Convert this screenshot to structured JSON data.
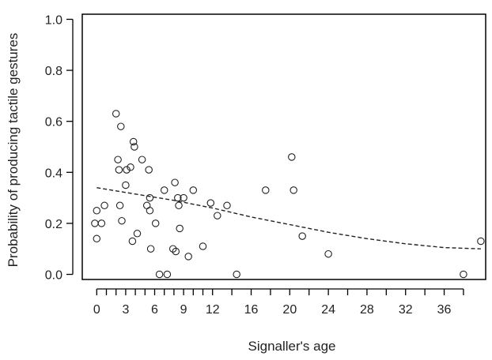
{
  "chart_data": {
    "type": "scatter",
    "title": "",
    "xlabel": "Signaller's age",
    "ylabel": "Probability of producing tactile gestures",
    "xlim": [
      -1.5,
      40.3
    ],
    "ylim": [
      -0.02,
      1.02
    ],
    "x_ticks": [
      0,
      3,
      6,
      9,
      12,
      16,
      20,
      24,
      28,
      32,
      36
    ],
    "x_tick_labels": [
      "0",
      "3",
      "6",
      "9",
      "12",
      "16",
      "20",
      "24",
      "28",
      "32",
      "36"
    ],
    "x_minor_ticks": [
      0,
      1,
      2,
      3,
      4,
      5,
      6,
      7,
      8,
      9,
      10,
      11,
      12,
      14,
      16,
      18,
      20,
      22,
      24,
      26,
      28,
      30,
      32,
      34,
      36,
      38
    ],
    "y_ticks": [
      0.0,
      0.2,
      0.4,
      0.6,
      0.8,
      1.0
    ],
    "y_tick_labels": [
      "0.0",
      "0.2",
      "0.4",
      "0.6",
      "0.8",
      "1.0"
    ],
    "grid": false,
    "legend": "none",
    "colors": {
      "points": "#222222",
      "fit": "#222222",
      "axes": "#000000"
    },
    "series": [
      {
        "kind": "points",
        "marker": "open-circle",
        "points": [
          {
            "x": -0.2,
            "y": 0.2
          },
          {
            "x": 0.0,
            "y": 0.25
          },
          {
            "x": 0.0,
            "y": 0.14
          },
          {
            "x": 0.5,
            "y": 0.2
          },
          {
            "x": 0.8,
            "y": 0.27
          },
          {
            "x": 2.0,
            "y": 0.63
          },
          {
            "x": 2.2,
            "y": 0.45
          },
          {
            "x": 2.3,
            "y": 0.41
          },
          {
            "x": 2.4,
            "y": 0.27
          },
          {
            "x": 2.5,
            "y": 0.58
          },
          {
            "x": 2.6,
            "y": 0.21
          },
          {
            "x": 3.0,
            "y": 0.35
          },
          {
            "x": 3.1,
            "y": 0.41
          },
          {
            "x": 3.5,
            "y": 0.42
          },
          {
            "x": 3.7,
            "y": 0.13
          },
          {
            "x": 3.8,
            "y": 0.52
          },
          {
            "x": 3.9,
            "y": 0.5
          },
          {
            "x": 4.2,
            "y": 0.16
          },
          {
            "x": 4.7,
            "y": 0.45
          },
          {
            "x": 5.2,
            "y": 0.27
          },
          {
            "x": 5.4,
            "y": 0.41
          },
          {
            "x": 5.5,
            "y": 0.3
          },
          {
            "x": 5.5,
            "y": 0.25
          },
          {
            "x": 5.6,
            "y": 0.1
          },
          {
            "x": 6.1,
            "y": 0.2
          },
          {
            "x": 6.5,
            "y": 0.0
          },
          {
            "x": 7.0,
            "y": 0.33
          },
          {
            "x": 7.3,
            "y": 0.0
          },
          {
            "x": 7.9,
            "y": 0.1
          },
          {
            "x": 8.1,
            "y": 0.36
          },
          {
            "x": 8.2,
            "y": 0.09
          },
          {
            "x": 8.4,
            "y": 0.3
          },
          {
            "x": 8.5,
            "y": 0.27
          },
          {
            "x": 8.6,
            "y": 0.18
          },
          {
            "x": 9.0,
            "y": 0.3
          },
          {
            "x": 9.5,
            "y": 0.07
          },
          {
            "x": 10.0,
            "y": 0.33
          },
          {
            "x": 11.0,
            "y": 0.11
          },
          {
            "x": 11.8,
            "y": 0.28
          },
          {
            "x": 12.5,
            "y": 0.23
          },
          {
            "x": 13.5,
            "y": 0.27
          },
          {
            "x": 14.5,
            "y": 0.0
          },
          {
            "x": 17.5,
            "y": 0.33
          },
          {
            "x": 20.2,
            "y": 0.46
          },
          {
            "x": 20.4,
            "y": 0.33
          },
          {
            "x": 21.3,
            "y": 0.15
          },
          {
            "x": 24.0,
            "y": 0.08
          },
          {
            "x": 38.0,
            "y": 0.0
          },
          {
            "x": 39.8,
            "y": 0.13
          }
        ]
      },
      {
        "kind": "fit-line",
        "style": "dashed",
        "points": [
          {
            "x": 0,
            "y": 0.34
          },
          {
            "x": 4,
            "y": 0.315
          },
          {
            "x": 8,
            "y": 0.29
          },
          {
            "x": 12,
            "y": 0.26
          },
          {
            "x": 16,
            "y": 0.225
          },
          {
            "x": 20,
            "y": 0.195
          },
          {
            "x": 24,
            "y": 0.165
          },
          {
            "x": 28,
            "y": 0.14
          },
          {
            "x": 32,
            "y": 0.12
          },
          {
            "x": 36,
            "y": 0.105
          },
          {
            "x": 39.8,
            "y": 0.1
          }
        ]
      }
    ]
  }
}
